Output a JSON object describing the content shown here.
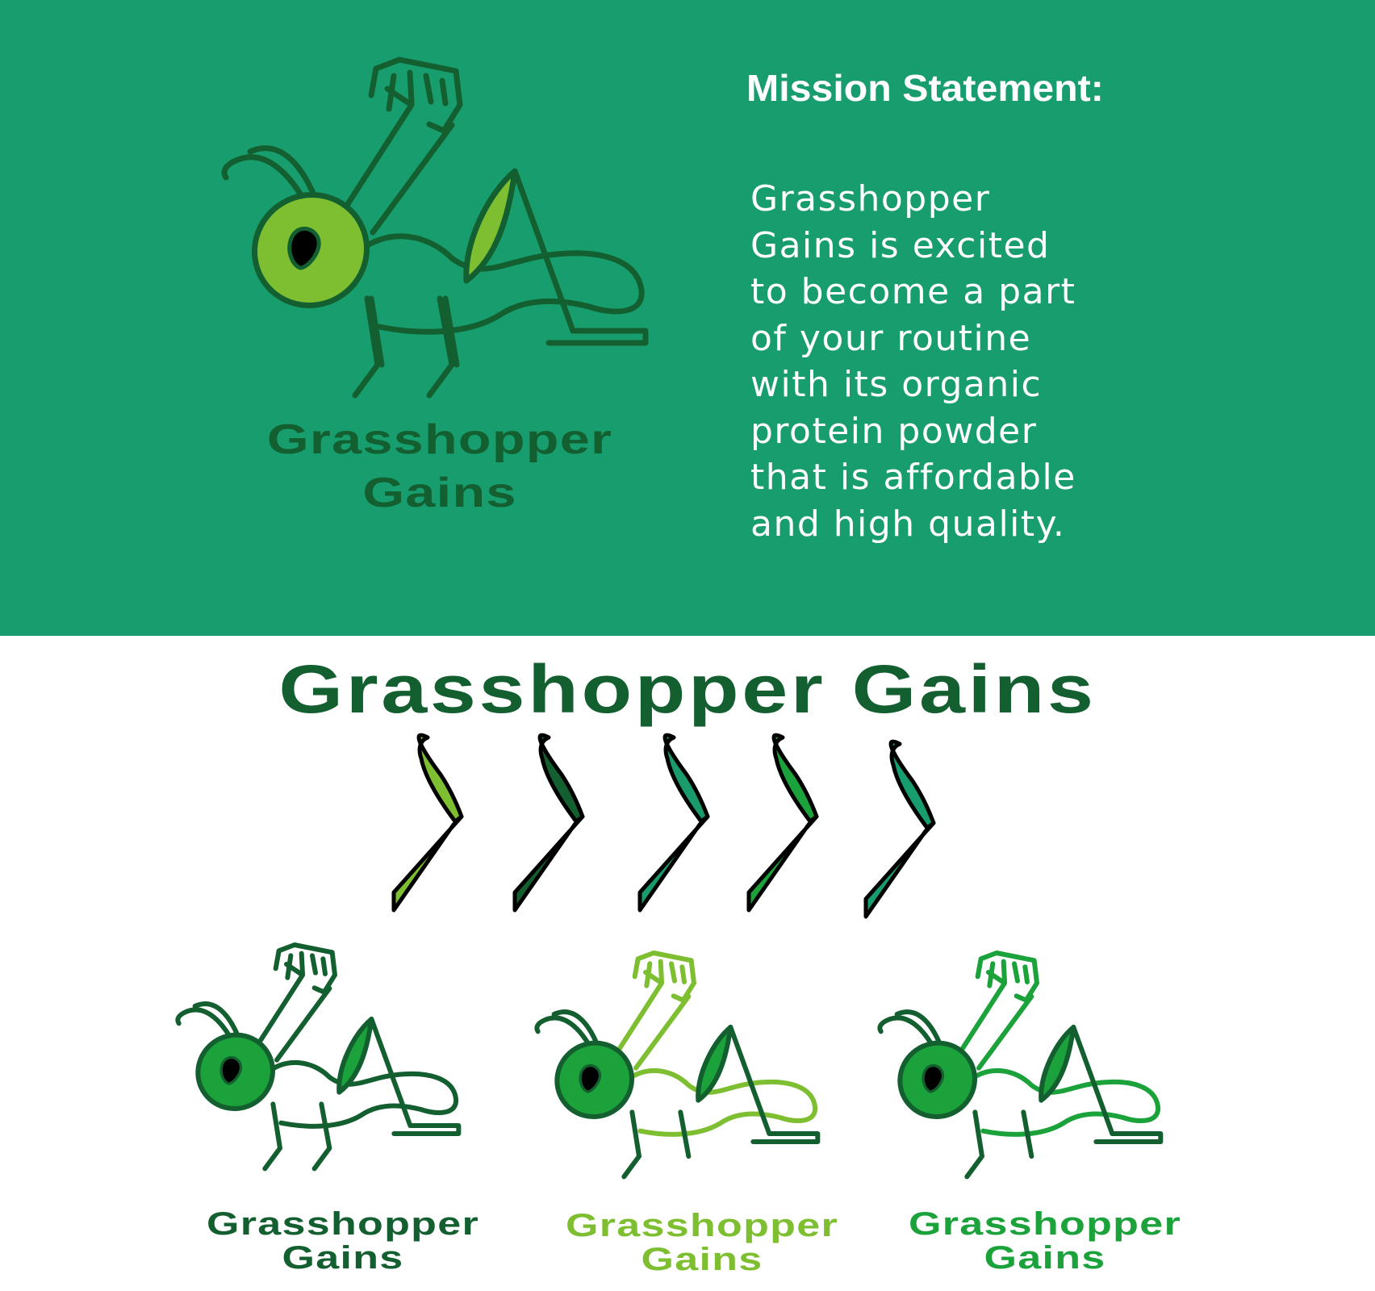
{
  "brand": {
    "name": "Grasshopper Gains",
    "logo_line1": "Grasshopper",
    "logo_line2": "Gains"
  },
  "mission": {
    "title": "Mission Statement:",
    "lines": [
      "Grasshopper",
      "Gains is excited",
      "to become a part",
      "of your routine",
      "with its organic",
      "protein powder",
      "that is affordable",
      "and high quality."
    ]
  },
  "colors": {
    "band_background": "#189d6e",
    "dark_green": "#135f30",
    "lime": "#7dbf31",
    "bright_green": "#1ba23a",
    "teal_green": "#1a9b6c",
    "white": "#ffffff"
  },
  "swatches": [
    {
      "name": "lime",
      "color": "#7dbf31"
    },
    {
      "name": "dark-green",
      "color": "#135f30"
    },
    {
      "name": "teal-green",
      "color": "#1a9b6c"
    },
    {
      "name": "bright-green",
      "color": "#1ba23a"
    },
    {
      "name": "sea-green",
      "color": "#189d6e"
    }
  ],
  "variants": [
    {
      "name_line1": "Grasshopper",
      "name_line2": "Gains",
      "text_color": "#135f30",
      "accent": "#135f30",
      "fill": "#1ba23a"
    },
    {
      "name_line1": "Grasshopper",
      "name_line2": "Gains",
      "text_color": "#7dbf31",
      "accent": "#7dbf31",
      "fill": "#1ba23a"
    },
    {
      "name_line1": "Grasshopper",
      "name_line2": "Gains",
      "text_color": "#1ba23a",
      "accent": "#1ba23a",
      "fill": "#1ba23a"
    }
  ],
  "icons": {
    "mascot": "grasshopper-flexing-mascot",
    "swatch": "grasshopper-leg-swatch"
  }
}
